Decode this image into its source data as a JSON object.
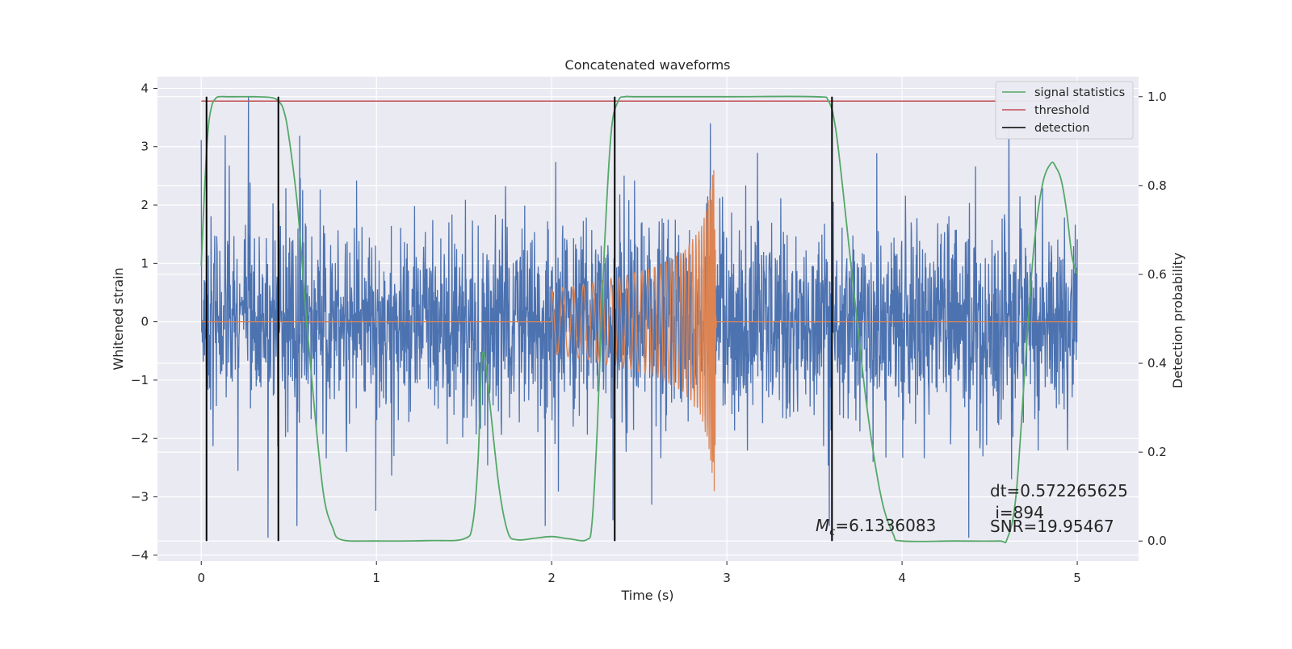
{
  "chart_data": {
    "type": "line",
    "title": "Concatenated waveforms",
    "xlabel": "Time (s)",
    "ylabel_left": "Whitened strain",
    "ylabel_right": "Detection probability",
    "xlim": [
      -0.25,
      5.35
    ],
    "ylim_left": [
      -4.1,
      4.2
    ],
    "ylim_right": [
      -0.045,
      1.045
    ],
    "x_ticks": [
      "0",
      "1",
      "2",
      "3",
      "4",
      "5"
    ],
    "y_ticks_left": [
      "4",
      "3",
      "2",
      "1",
      "0",
      "−1",
      "−2",
      "−3",
      "−4"
    ],
    "y_ticks_right": [
      "1.0",
      "0.8",
      "0.6",
      "0.4",
      "0.2",
      "0.0"
    ],
    "grid": true,
    "legend_position": "top-right",
    "series": [
      {
        "name": "",
        "axis": "left",
        "color": "#4c72b0",
        "kind": "whitened noise strain",
        "x_range": [
          0,
          5
        ],
        "amplitude_std": 0.8,
        "peaks": [
          [
            0.27,
            3.85
          ],
          [
            0.38,
            -3.7
          ],
          [
            2.35,
            -3.4
          ],
          [
            4.38,
            -3.7
          ]
        ]
      },
      {
        "name": "",
        "axis": "left",
        "color": "#dd8452",
        "kind": "injected chirp",
        "x": [
          0,
          2.0,
          2.2,
          2.4,
          2.6,
          2.75,
          2.85,
          2.9,
          2.93,
          2.94,
          5.0
        ],
        "envelope": [
          0,
          0.55,
          0.65,
          0.78,
          0.95,
          1.2,
          1.6,
          2.2,
          2.95,
          0,
          0
        ]
      },
      {
        "name": "signal statistics",
        "axis": "right",
        "color": "#55a868",
        "x": [
          0,
          0.02,
          0.04,
          0.06,
          0.08,
          0.1,
          0.15,
          0.2,
          0.3,
          0.4,
          0.44,
          0.47,
          0.5,
          0.55,
          0.6,
          0.65,
          0.7,
          0.75,
          0.8,
          1.0,
          1.3,
          1.5,
          1.55,
          1.58,
          1.6,
          1.62,
          1.65,
          1.7,
          1.75,
          1.8,
          1.9,
          2.0,
          2.1,
          2.2,
          2.23,
          2.26,
          2.3,
          2.34,
          2.38,
          2.42,
          2.5,
          3.0,
          3.5,
          3.58,
          3.62,
          3.66,
          3.72,
          3.8,
          3.88,
          3.95,
          4.0,
          4.3,
          4.55,
          4.6,
          4.65,
          4.7,
          4.75,
          4.8,
          4.85,
          4.88,
          4.91,
          4.94,
          4.97,
          5.0
        ],
        "y": [
          0.62,
          0.8,
          0.93,
          0.98,
          0.995,
          1.0,
          1.0,
          1.0,
          1.0,
          0.998,
          0.99,
          0.97,
          0.91,
          0.75,
          0.5,
          0.28,
          0.1,
          0.03,
          0.003,
          0.0,
          0.001,
          0.005,
          0.04,
          0.18,
          0.4,
          0.41,
          0.3,
          0.12,
          0.02,
          0.003,
          0.006,
          0.01,
          0.005,
          0.003,
          0.04,
          0.25,
          0.65,
          0.92,
          0.99,
          1.0,
          1.0,
          1.0,
          1.0,
          0.99,
          0.93,
          0.8,
          0.58,
          0.3,
          0.1,
          0.015,
          0.0,
          0.0,
          0.0,
          0.005,
          0.1,
          0.38,
          0.65,
          0.8,
          0.85,
          0.84,
          0.81,
          0.74,
          0.64,
          0.6
        ]
      },
      {
        "name": "threshold",
        "axis": "right",
        "color": "#c44e52",
        "x": [
          0,
          5
        ],
        "y": [
          0.99,
          0.99
        ]
      },
      {
        "name": "detection",
        "axis": "right",
        "color": "#000000",
        "x": [
          0.03,
          0.44,
          2.36,
          3.6
        ]
      }
    ],
    "annotations": {
      "mc_prefix": "M",
      "mc_sub": "c",
      "mc_value": "=6.1336083",
      "dt": "dt=0.572265625",
      "index": " i=894",
      "snr": "SNR=19.95467"
    }
  }
}
